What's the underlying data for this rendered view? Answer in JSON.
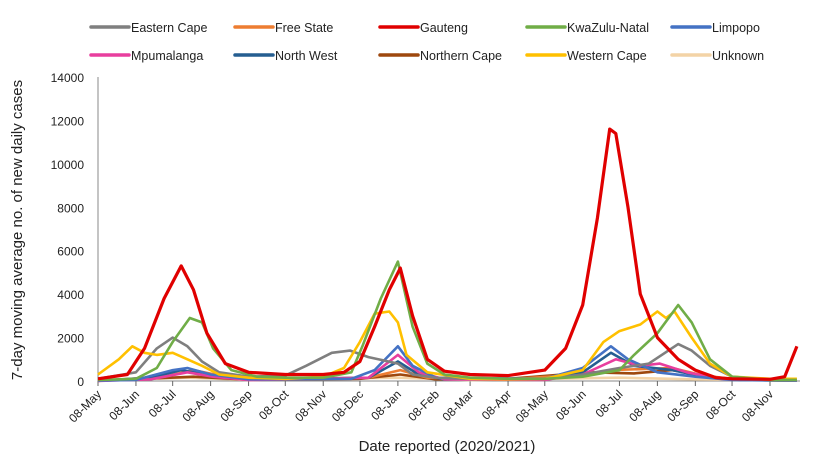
{
  "chart_data": {
    "type": "line",
    "title": "",
    "xlabel": "Date reported (2020/2021)",
    "ylabel": "7-day moving average no. of new daily cases",
    "ylim": [
      0,
      14000
    ],
    "yticks": [
      0,
      2000,
      4000,
      6000,
      8000,
      10000,
      12000,
      14000
    ],
    "xlim": [
      "2020-05-08",
      "2021-11-30"
    ],
    "xticks": [
      {
        "date": "2020-05-08",
        "label": "08-May"
      },
      {
        "date": "2020-06-08",
        "label": "08-Jun"
      },
      {
        "date": "2020-07-08",
        "label": "08-Jul"
      },
      {
        "date": "2020-08-08",
        "label": "08-Aug"
      },
      {
        "date": "2020-09-08",
        "label": "08-Sep"
      },
      {
        "date": "2020-10-08",
        "label": "08-Oct"
      },
      {
        "date": "2020-11-08",
        "label": "08-Nov"
      },
      {
        "date": "2020-12-08",
        "label": "08-Dec"
      },
      {
        "date": "2021-01-08",
        "label": "08-Jan"
      },
      {
        "date": "2021-02-08",
        "label": "08-Feb"
      },
      {
        "date": "2021-03-08",
        "label": "08-Mar"
      },
      {
        "date": "2021-04-08",
        "label": "08-Apr"
      },
      {
        "date": "2021-05-08",
        "label": "08-May"
      },
      {
        "date": "2021-06-08",
        "label": "08-Jun"
      },
      {
        "date": "2021-07-08",
        "label": "08-Jul"
      },
      {
        "date": "2021-08-08",
        "label": "08-Aug"
      },
      {
        "date": "2021-09-08",
        "label": "08-Sep"
      },
      {
        "date": "2021-10-08",
        "label": "08-Oct"
      },
      {
        "date": "2021-11-08",
        "label": "08-Nov"
      }
    ],
    "grid": false,
    "legend_position": "top",
    "series": [
      {
        "name": "Unknown",
        "color": "#f3d3a6",
        "points": [
          [
            "2020-05-08",
            30
          ],
          [
            "2020-07-20",
            150
          ],
          [
            "2020-09-08",
            50
          ],
          [
            "2021-01-08",
            150
          ],
          [
            "2021-03-08",
            40
          ],
          [
            "2021-07-08",
            150
          ],
          [
            "2021-09-08",
            80
          ],
          [
            "2021-11-30",
            30
          ]
        ]
      },
      {
        "name": "Northern Cape",
        "color": "#9e480e",
        "points": [
          [
            "2020-05-08",
            10
          ],
          [
            "2020-07-25",
            200
          ],
          [
            "2020-09-08",
            60
          ],
          [
            "2020-12-08",
            100
          ],
          [
            "2021-01-10",
            300
          ],
          [
            "2021-02-08",
            80
          ],
          [
            "2021-04-08",
            100
          ],
          [
            "2021-06-15",
            400
          ],
          [
            "2021-07-20",
            350
          ],
          [
            "2021-08-20",
            500
          ],
          [
            "2021-09-20",
            200
          ],
          [
            "2021-10-15",
            50
          ],
          [
            "2021-11-30",
            20
          ]
        ]
      },
      {
        "name": "Free State",
        "color": "#ed7d31",
        "points": [
          [
            "2020-05-08",
            10
          ],
          [
            "2020-07-01",
            200
          ],
          [
            "2020-07-25",
            500
          ],
          [
            "2020-08-20",
            200
          ],
          [
            "2020-09-15",
            60
          ],
          [
            "2020-12-15",
            150
          ],
          [
            "2021-01-10",
            500
          ],
          [
            "2021-02-01",
            150
          ],
          [
            "2021-04-08",
            80
          ],
          [
            "2021-06-08",
            300
          ],
          [
            "2021-07-01",
            500
          ],
          [
            "2021-08-20",
            600
          ],
          [
            "2021-09-15",
            250
          ],
          [
            "2021-10-15",
            50
          ],
          [
            "2021-11-30",
            20
          ]
        ]
      },
      {
        "name": "North West",
        "color": "#255e91",
        "points": [
          [
            "2020-05-08",
            10
          ],
          [
            "2020-06-20",
            150
          ],
          [
            "2020-07-15",
            500
          ],
          [
            "2020-08-08",
            250
          ],
          [
            "2020-09-08",
            60
          ],
          [
            "2020-12-15",
            150
          ],
          [
            "2021-01-08",
            900
          ],
          [
            "2021-01-25",
            300
          ],
          [
            "2021-02-15",
            80
          ],
          [
            "2021-05-08",
            80
          ],
          [
            "2021-06-08",
            400
          ],
          [
            "2021-07-01",
            1300
          ],
          [
            "2021-07-20",
            700
          ],
          [
            "2021-08-20",
            500
          ],
          [
            "2021-09-15",
            200
          ],
          [
            "2021-10-15",
            40
          ],
          [
            "2021-11-30",
            20
          ]
        ]
      },
      {
        "name": "Mpumalanga",
        "color": "#e83e9e",
        "points": [
          [
            "2020-05-08",
            5
          ],
          [
            "2020-06-20",
            80
          ],
          [
            "2020-07-20",
            400
          ],
          [
            "2020-08-10",
            200
          ],
          [
            "2020-09-08",
            40
          ],
          [
            "2020-12-15",
            150
          ],
          [
            "2021-01-08",
            1200
          ],
          [
            "2021-01-25",
            400
          ],
          [
            "2021-02-15",
            80
          ],
          [
            "2021-05-08",
            50
          ],
          [
            "2021-06-08",
            300
          ],
          [
            "2021-07-05",
            1000
          ],
          [
            "2021-07-25",
            700
          ],
          [
            "2021-08-10",
            800
          ],
          [
            "2021-09-01",
            400
          ],
          [
            "2021-10-01",
            80
          ],
          [
            "2021-11-30",
            20
          ]
        ]
      },
      {
        "name": "Limpopo",
        "color": "#4472c4",
        "points": [
          [
            "2020-05-08",
            20
          ],
          [
            "2020-06-08",
            50
          ],
          [
            "2020-07-08",
            500
          ],
          [
            "2020-07-20",
            600
          ],
          [
            "2020-08-08",
            300
          ],
          [
            "2020-09-08",
            80
          ],
          [
            "2020-12-01",
            100
          ],
          [
            "2020-12-20",
            500
          ],
          [
            "2021-01-08",
            1600
          ],
          [
            "2021-01-20",
            700
          ],
          [
            "2021-02-08",
            150
          ],
          [
            "2021-05-08",
            100
          ],
          [
            "2021-06-08",
            600
          ],
          [
            "2021-07-01",
            1600
          ],
          [
            "2021-07-15",
            1000
          ],
          [
            "2021-08-08",
            400
          ],
          [
            "2021-09-08",
            200
          ],
          [
            "2021-10-08",
            50
          ],
          [
            "2021-11-30",
            20
          ]
        ]
      },
      {
        "name": "Eastern Cape",
        "color": "#7f7f7f",
        "points": [
          [
            "2020-05-08",
            100
          ],
          [
            "2020-06-08",
            400
          ],
          [
            "2020-06-25",
            1500
          ],
          [
            "2020-07-08",
            2000
          ],
          [
            "2020-07-20",
            1600
          ],
          [
            "2020-08-01",
            900
          ],
          [
            "2020-08-15",
            400
          ],
          [
            "2020-09-08",
            200
          ],
          [
            "2020-10-08",
            250
          ],
          [
            "2020-10-25",
            700
          ],
          [
            "2020-11-15",
            1300
          ],
          [
            "2020-11-30",
            1400
          ],
          [
            "2020-12-15",
            1100
          ],
          [
            "2021-01-08",
            800
          ],
          [
            "2021-01-20",
            300
          ],
          [
            "2021-02-08",
            150
          ],
          [
            "2021-03-08",
            100
          ],
          [
            "2021-05-08",
            100
          ],
          [
            "2021-06-08",
            300
          ],
          [
            "2021-07-08",
            600
          ],
          [
            "2021-08-01",
            800
          ],
          [
            "2021-08-25",
            1700
          ],
          [
            "2021-09-05",
            1400
          ],
          [
            "2021-09-20",
            700
          ],
          [
            "2021-10-08",
            200
          ],
          [
            "2021-11-08",
            50
          ],
          [
            "2021-11-30",
            50
          ]
        ]
      },
      {
        "name": "Western Cape",
        "color": "#ffc000",
        "points": [
          [
            "2020-05-08",
            300
          ],
          [
            "2020-05-25",
            1000
          ],
          [
            "2020-06-05",
            1600
          ],
          [
            "2020-06-15",
            1300
          ],
          [
            "2020-06-25",
            1200
          ],
          [
            "2020-07-08",
            1300
          ],
          [
            "2020-07-20",
            1000
          ],
          [
            "2020-08-01",
            700
          ],
          [
            "2020-08-15",
            300
          ],
          [
            "2020-09-08",
            150
          ],
          [
            "2020-10-08",
            100
          ],
          [
            "2020-11-08",
            200
          ],
          [
            "2020-11-25",
            600
          ],
          [
            "2020-12-08",
            1800
          ],
          [
            "2020-12-20",
            3100
          ],
          [
            "2021-01-01",
            3200
          ],
          [
            "2021-01-08",
            2700
          ],
          [
            "2021-01-15",
            1200
          ],
          [
            "2021-02-01",
            400
          ],
          [
            "2021-03-08",
            100
          ],
          [
            "2021-04-08",
            80
          ],
          [
            "2021-05-08",
            100
          ],
          [
            "2021-06-08",
            500
          ],
          [
            "2021-06-25",
            1800
          ],
          [
            "2021-07-08",
            2300
          ],
          [
            "2021-07-25",
            2600
          ],
          [
            "2021-08-08",
            3200
          ],
          [
            "2021-08-15",
            2900
          ],
          [
            "2021-08-22",
            3200
          ],
          [
            "2021-09-05",
            2000
          ],
          [
            "2021-09-20",
            800
          ],
          [
            "2021-10-08",
            200
          ],
          [
            "2021-11-08",
            100
          ],
          [
            "2021-11-30",
            100
          ]
        ]
      },
      {
        "name": "KwaZulu-Natal",
        "color": "#70ad47",
        "points": [
          [
            "2020-05-08",
            50
          ],
          [
            "2020-06-08",
            100
          ],
          [
            "2020-06-25",
            600
          ],
          [
            "2020-07-08",
            1800
          ],
          [
            "2020-07-22",
            2900
          ],
          [
            "2020-08-01",
            2700
          ],
          [
            "2020-08-10",
            1500
          ],
          [
            "2020-08-25",
            500
          ],
          [
            "2020-09-15",
            200
          ],
          [
            "2020-10-08",
            150
          ],
          [
            "2020-11-08",
            150
          ],
          [
            "2020-12-01",
            400
          ],
          [
            "2020-12-10",
            1600
          ],
          [
            "2020-12-25",
            3800
          ],
          [
            "2021-01-08",
            5500
          ],
          [
            "2021-01-20",
            2500
          ],
          [
            "2021-02-01",
            800
          ],
          [
            "2021-02-15",
            300
          ],
          [
            "2021-03-08",
            150
          ],
          [
            "2021-04-08",
            100
          ],
          [
            "2021-05-08",
            100
          ],
          [
            "2021-06-08",
            200
          ],
          [
            "2021-07-08",
            500
          ],
          [
            "2021-07-20",
            1200
          ],
          [
            "2021-08-08",
            2200
          ],
          [
            "2021-08-25",
            3500
          ],
          [
            "2021-09-05",
            2700
          ],
          [
            "2021-09-20",
            1000
          ],
          [
            "2021-10-08",
            200
          ],
          [
            "2021-11-08",
            50
          ],
          [
            "2021-11-30",
            50
          ]
        ]
      },
      {
        "name": "Gauteng",
        "color": "#e00000",
        "points": [
          [
            "2020-05-08",
            100
          ],
          [
            "2020-06-01",
            300
          ],
          [
            "2020-06-15",
            1500
          ],
          [
            "2020-07-01",
            3800
          ],
          [
            "2020-07-15",
            5300
          ],
          [
            "2020-07-25",
            4200
          ],
          [
            "2020-08-05",
            2200
          ],
          [
            "2020-08-20",
            800
          ],
          [
            "2020-09-08",
            400
          ],
          [
            "2020-10-08",
            300
          ],
          [
            "2020-11-08",
            300
          ],
          [
            "2020-11-25",
            400
          ],
          [
            "2020-12-08",
            900
          ],
          [
            "2020-12-20",
            2500
          ],
          [
            "2021-01-01",
            4200
          ],
          [
            "2021-01-10",
            5200
          ],
          [
            "2021-01-20",
            3000
          ],
          [
            "2021-02-01",
            1000
          ],
          [
            "2021-02-15",
            450
          ],
          [
            "2021-03-08",
            300
          ],
          [
            "2021-04-08",
            250
          ],
          [
            "2021-05-08",
            500
          ],
          [
            "2021-05-25",
            1500
          ],
          [
            "2021-06-08",
            3500
          ],
          [
            "2021-06-20",
            7500
          ],
          [
            "2021-06-30",
            11600
          ],
          [
            "2021-07-05",
            11400
          ],
          [
            "2021-07-15",
            8000
          ],
          [
            "2021-07-25",
            4000
          ],
          [
            "2021-08-08",
            2000
          ],
          [
            "2021-08-25",
            1000
          ],
          [
            "2021-09-08",
            500
          ],
          [
            "2021-09-25",
            150
          ],
          [
            "2021-10-08",
            100
          ],
          [
            "2021-11-08",
            80
          ],
          [
            "2021-11-20",
            200
          ],
          [
            "2021-11-30",
            1600
          ]
        ]
      }
    ],
    "legend": [
      {
        "name": "Eastern Cape",
        "color": "#7f7f7f"
      },
      {
        "name": "Free State",
        "color": "#ed7d31"
      },
      {
        "name": "Gauteng",
        "color": "#e00000"
      },
      {
        "name": "KwaZulu-Natal",
        "color": "#70ad47"
      },
      {
        "name": "Limpopo",
        "color": "#4472c4"
      },
      {
        "name": "Mpumalanga",
        "color": "#e83e9e"
      },
      {
        "name": "North West",
        "color": "#255e91"
      },
      {
        "name": "Northern Cape",
        "color": "#9e480e"
      },
      {
        "name": "Western Cape",
        "color": "#ffc000"
      },
      {
        "name": "Unknown",
        "color": "#f3d3a6"
      }
    ]
  }
}
